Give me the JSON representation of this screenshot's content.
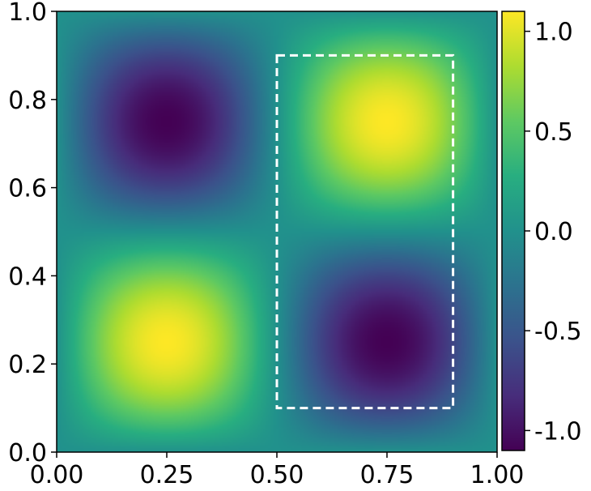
{
  "chart_data": {
    "type": "heatmap",
    "title": "",
    "xlabel": "",
    "ylabel": "",
    "xlim": [
      0,
      1
    ],
    "ylim": [
      0,
      1
    ],
    "x_ticks": [
      "0.00",
      "0.25",
      "0.50",
      "0.75",
      "1.00"
    ],
    "y_ticks": [
      "0.0",
      "0.2",
      "0.4",
      "0.6",
      "0.8",
      "1.0"
    ],
    "colormap": "viridis",
    "function": "sin(2*pi*x) * sin(2*pi*y) * 1.1",
    "peaks": [
      {
        "x": 0.25,
        "y": 0.25,
        "value": 1.1
      },
      {
        "x": 0.75,
        "y": 0.75,
        "value": 1.1
      },
      {
        "x": 0.25,
        "y": 0.75,
        "value": -1.1
      },
      {
        "x": 0.75,
        "y": 0.25,
        "value": -1.1
      }
    ],
    "colorbar": {
      "range": [
        -1.1,
        1.1
      ],
      "ticks": [
        1.0,
        0.5,
        0.0,
        -0.5,
        -1.0
      ],
      "tick_labels": [
        "1.0",
        "0.5",
        "0.0",
        "-0.5",
        "-1.0"
      ]
    },
    "annotation_rect": {
      "style": "dashed",
      "color": "#ffffff",
      "x0": 0.5,
      "x1": 0.9,
      "y0": 0.1,
      "y1": 0.9
    }
  }
}
